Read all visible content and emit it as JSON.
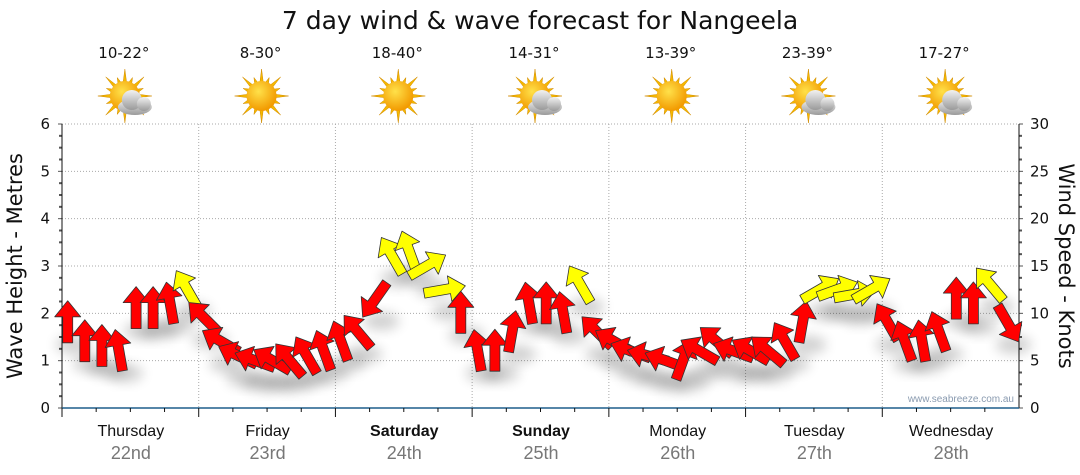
{
  "chart_data": {
    "type": "scatter",
    "title": "7 day wind & wave forecast for Nangeela",
    "ylabel": "Wave Height - Metres",
    "y2label": "Wind Speed - Knots",
    "ylim": [
      0,
      6
    ],
    "y2lim": [
      0,
      30
    ],
    "yticks": [
      "0",
      "1",
      "2",
      "3",
      "4",
      "5",
      "6"
    ],
    "y2ticks": [
      "0",
      "5",
      "10",
      "15",
      "20",
      "25",
      "30"
    ],
    "grid": true,
    "watermark": "www.seabreeze.com.au",
    "strong_wind_threshold_knots": 12,
    "colors": {
      "normal": "#ff0000",
      "strong": "#ffff00",
      "axis": "#1f5f8b"
    },
    "days": [
      {
        "name": "Thursday",
        "date": "22nd",
        "temp": "10-22°",
        "icon": "partly-cloudy",
        "bold": false
      },
      {
        "name": "Friday",
        "date": "23rd",
        "temp": "8-30°",
        "icon": "sunny",
        "bold": false
      },
      {
        "name": "Saturday",
        "date": "24th",
        "temp": "18-40°",
        "icon": "sunny",
        "bold": true
      },
      {
        "name": "Sunday",
        "date": "25th",
        "temp": "14-31°",
        "icon": "partly-cloudy",
        "bold": true
      },
      {
        "name": "Monday",
        "date": "26th",
        "temp": "13-39°",
        "icon": "sunny",
        "bold": false
      },
      {
        "name": "Tuesday",
        "date": "27th",
        "temp": "23-39°",
        "icon": "partly-cloudy",
        "bold": false
      },
      {
        "name": "Wednesday",
        "date": "28th",
        "temp": "17-27°",
        "icon": "partly-cloudy",
        "bold": false
      }
    ],
    "wind_interval_hours": 3,
    "wind_speed_knots": [
      9,
      7,
      6.5,
      6,
      10.5,
      10.5,
      11,
      12.5,
      9.5,
      7,
      5.5,
      5,
      5,
      5,
      5.5,
      6,
      7,
      8,
      11.5,
      16,
      16.5,
      15,
      12.5,
      10,
      6,
      6,
      8,
      11,
      11,
      10,
      13,
      8,
      7,
      6,
      5.5,
      5,
      5,
      6,
      7,
      6,
      6,
      6,
      7,
      9,
      12.5,
      12.5,
      12,
      12.5,
      9,
      7,
      7,
      8,
      11.5,
      11,
      13,
      9
    ],
    "wind_direction_deg": [
      0,
      0,
      0,
      350,
      0,
      0,
      350,
      330,
      315,
      300,
      295,
      290,
      300,
      320,
      330,
      340,
      340,
      320,
      215,
      330,
      340,
      60,
      80,
      0,
      350,
      0,
      10,
      350,
      0,
      350,
      330,
      315,
      300,
      290,
      285,
      290,
      20,
      300,
      310,
      290,
      300,
      310,
      330,
      10,
      60,
      70,
      80,
      60,
      330,
      340,
      350,
      340,
      0,
      0,
      320,
      150
    ]
  }
}
